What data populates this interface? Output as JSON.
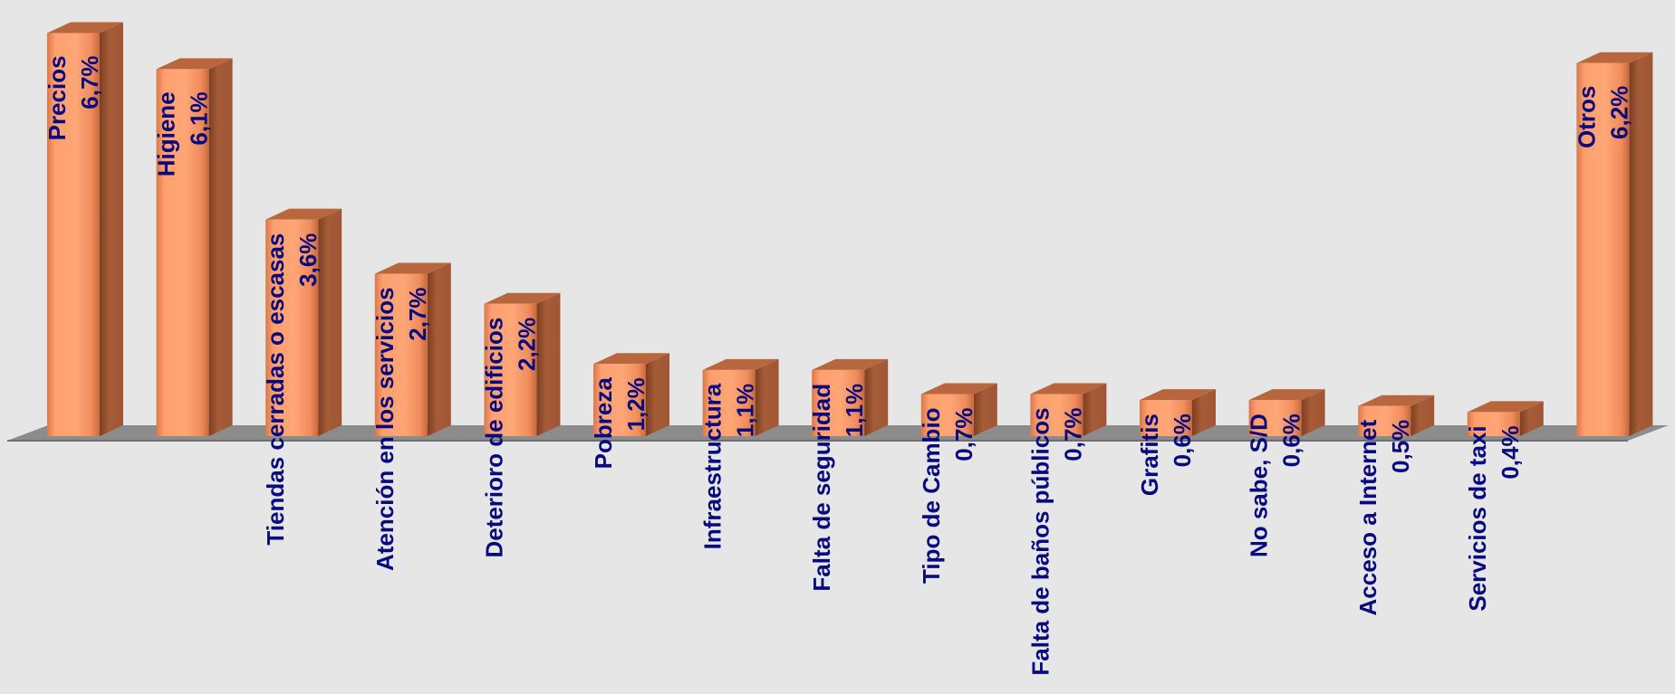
{
  "chart_data": {
    "type": "bar",
    "style": "3d-cylinder-bars",
    "categories": [
      "Precios",
      "Higiene",
      "Tiendas cerradas o escasas",
      "Atención en los servicios",
      "Deterioro de edificios",
      "Pobreza",
      "Infraestructura",
      "Falta de seguridad",
      "Tipo de Cambio",
      "Falta de baños públicos",
      "Grafitis",
      "No sabe, S/D",
      "Acceso a Internet",
      "Servicios de taxi",
      "Otros"
    ],
    "values": [
      6.7,
      6.1,
      3.6,
      2.7,
      2.2,
      1.2,
      1.1,
      1.1,
      0.7,
      0.7,
      0.6,
      0.6,
      0.5,
      0.4,
      6.2
    ],
    "value_labels": [
      "6,7%",
      "6,1%",
      "3,6%",
      "2,7%",
      "2,2%",
      "1,2%",
      "1,1%",
      "1,1%",
      "0,7%",
      "0,7%",
      "0,6%",
      "0,6%",
      "0,5%",
      "0,4%",
      "6,2%"
    ],
    "ylim": [
      0,
      7
    ],
    "grid": false,
    "legend": "none",
    "colors": {
      "background": "#e6e6e6",
      "bar_front": "#ffa070",
      "bar_side": "#a35a37",
      "bar_top": "#b8663e",
      "floor": "#8c8c8c",
      "label": "#0a0a80"
    }
  }
}
